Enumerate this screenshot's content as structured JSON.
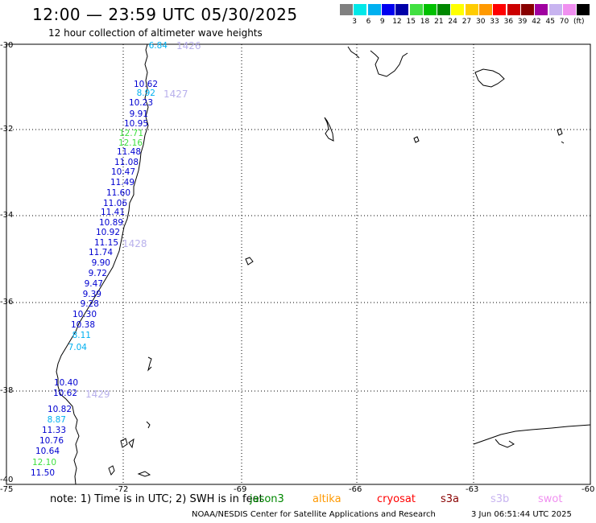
{
  "header": {
    "title": "12:00 — 23:59 UTC 05/30/2025",
    "subtitle": "12 hour collection of altimeter wave heights"
  },
  "legend": {
    "unit": "(ft)",
    "swatches": [
      {
        "color": "#808080",
        "label": ""
      },
      {
        "color": "#00e8e8",
        "label": "3"
      },
      {
        "color": "#00b0f0",
        "label": "6"
      },
      {
        "color": "#0000f0",
        "label": "9"
      },
      {
        "color": "#0000a8",
        "label": "12"
      },
      {
        "color": "#40e040",
        "label": "15"
      },
      {
        "color": "#00c000",
        "label": "18"
      },
      {
        "color": "#008800",
        "label": "21"
      },
      {
        "color": "#ffff00",
        "label": "24"
      },
      {
        "color": "#ffcc00",
        "label": "27"
      },
      {
        "color": "#ff9900",
        "label": "30"
      },
      {
        "color": "#ff0000",
        "label": "33"
      },
      {
        "color": "#cc0000",
        "label": "36"
      },
      {
        "color": "#880000",
        "label": "39"
      },
      {
        "color": "#a000a0",
        "label": "42"
      },
      {
        "color": "#c8b4f0",
        "label": "45"
      },
      {
        "color": "#f090f0",
        "label": "70"
      },
      {
        "color": "#000000",
        "label": ""
      }
    ]
  },
  "axes": {
    "latitudes": [
      "-30",
      "-32",
      "-34",
      "-36",
      "-38",
      "-40"
    ],
    "longitudes": [
      "-75",
      "-72",
      "-69",
      "-66",
      "-63",
      "-60"
    ]
  },
  "passes": [
    "1426",
    "1427",
    "1428",
    "1429"
  ],
  "measurements": [
    {
      "v": "6.84",
      "c": "#00b0f0"
    },
    {
      "v": "10.62",
      "c": "#0000d0"
    },
    {
      "v": "8.92",
      "c": "#00b0f0"
    },
    {
      "v": "10.23",
      "c": "#0000d0"
    },
    {
      "v": "9.91",
      "c": "#0000d0"
    },
    {
      "v": "10.95",
      "c": "#0000d0"
    },
    {
      "v": "12.71",
      "c": "#40e040"
    },
    {
      "v": "12.16",
      "c": "#40e040"
    },
    {
      "v": "11.48",
      "c": "#0000d0"
    },
    {
      "v": "11.08",
      "c": "#0000d0"
    },
    {
      "v": "10.47",
      "c": "#0000d0"
    },
    {
      "v": "11.49",
      "c": "#0000d0"
    },
    {
      "v": "11.60",
      "c": "#0000d0"
    },
    {
      "v": "11.06",
      "c": "#0000d0"
    },
    {
      "v": "11.41",
      "c": "#0000d0"
    },
    {
      "v": "10.89",
      "c": "#0000d0"
    },
    {
      "v": "10.92",
      "c": "#0000d0"
    },
    {
      "v": "11.15",
      "c": "#0000d0"
    },
    {
      "v": "11.74",
      "c": "#0000d0"
    },
    {
      "v": "9.90",
      "c": "#0000d0"
    },
    {
      "v": "9.72",
      "c": "#0000d0"
    },
    {
      "v": "9.47",
      "c": "#0000d0"
    },
    {
      "v": "9.39",
      "c": "#0000d0"
    },
    {
      "v": "9.28",
      "c": "#0000d0"
    },
    {
      "v": "10.30",
      "c": "#0000d0"
    },
    {
      "v": "10.38",
      "c": "#0000d0"
    },
    {
      "v": "8.11",
      "c": "#00b0f0"
    },
    {
      "v": "7.04",
      "c": "#00b0f0"
    },
    {
      "v": "10.40",
      "c": "#0000d0"
    },
    {
      "v": "10.62",
      "c": "#0000d0"
    },
    {
      "v": "10.82",
      "c": "#0000d0"
    },
    {
      "v": "8.87",
      "c": "#00b0f0"
    },
    {
      "v": "11.33",
      "c": "#0000d0"
    },
    {
      "v": "10.76",
      "c": "#0000d0"
    },
    {
      "v": "10.64",
      "c": "#0000d0"
    },
    {
      "v": "12.10",
      "c": "#40e040"
    },
    {
      "v": "11.50",
      "c": "#0000d0"
    }
  ],
  "footer": {
    "note": "note:  1) Time is in UTC; 2) SWH is in feet",
    "satellites": [
      {
        "name": "jason3",
        "color": "#008800"
      },
      {
        "name": "altika",
        "color": "#ff9900"
      },
      {
        "name": "cryosat",
        "color": "#ff0000"
      },
      {
        "name": "s3a",
        "color": "#880000"
      },
      {
        "name": "s3b",
        "color": "#c8b4f0"
      },
      {
        "name": "swot",
        "color": "#f090f0"
      }
    ],
    "credit": "NOAA/NESDIS Center for Satellite Applications and Research",
    "generated": "3 Jun 06:51:44 UTC 2025"
  }
}
